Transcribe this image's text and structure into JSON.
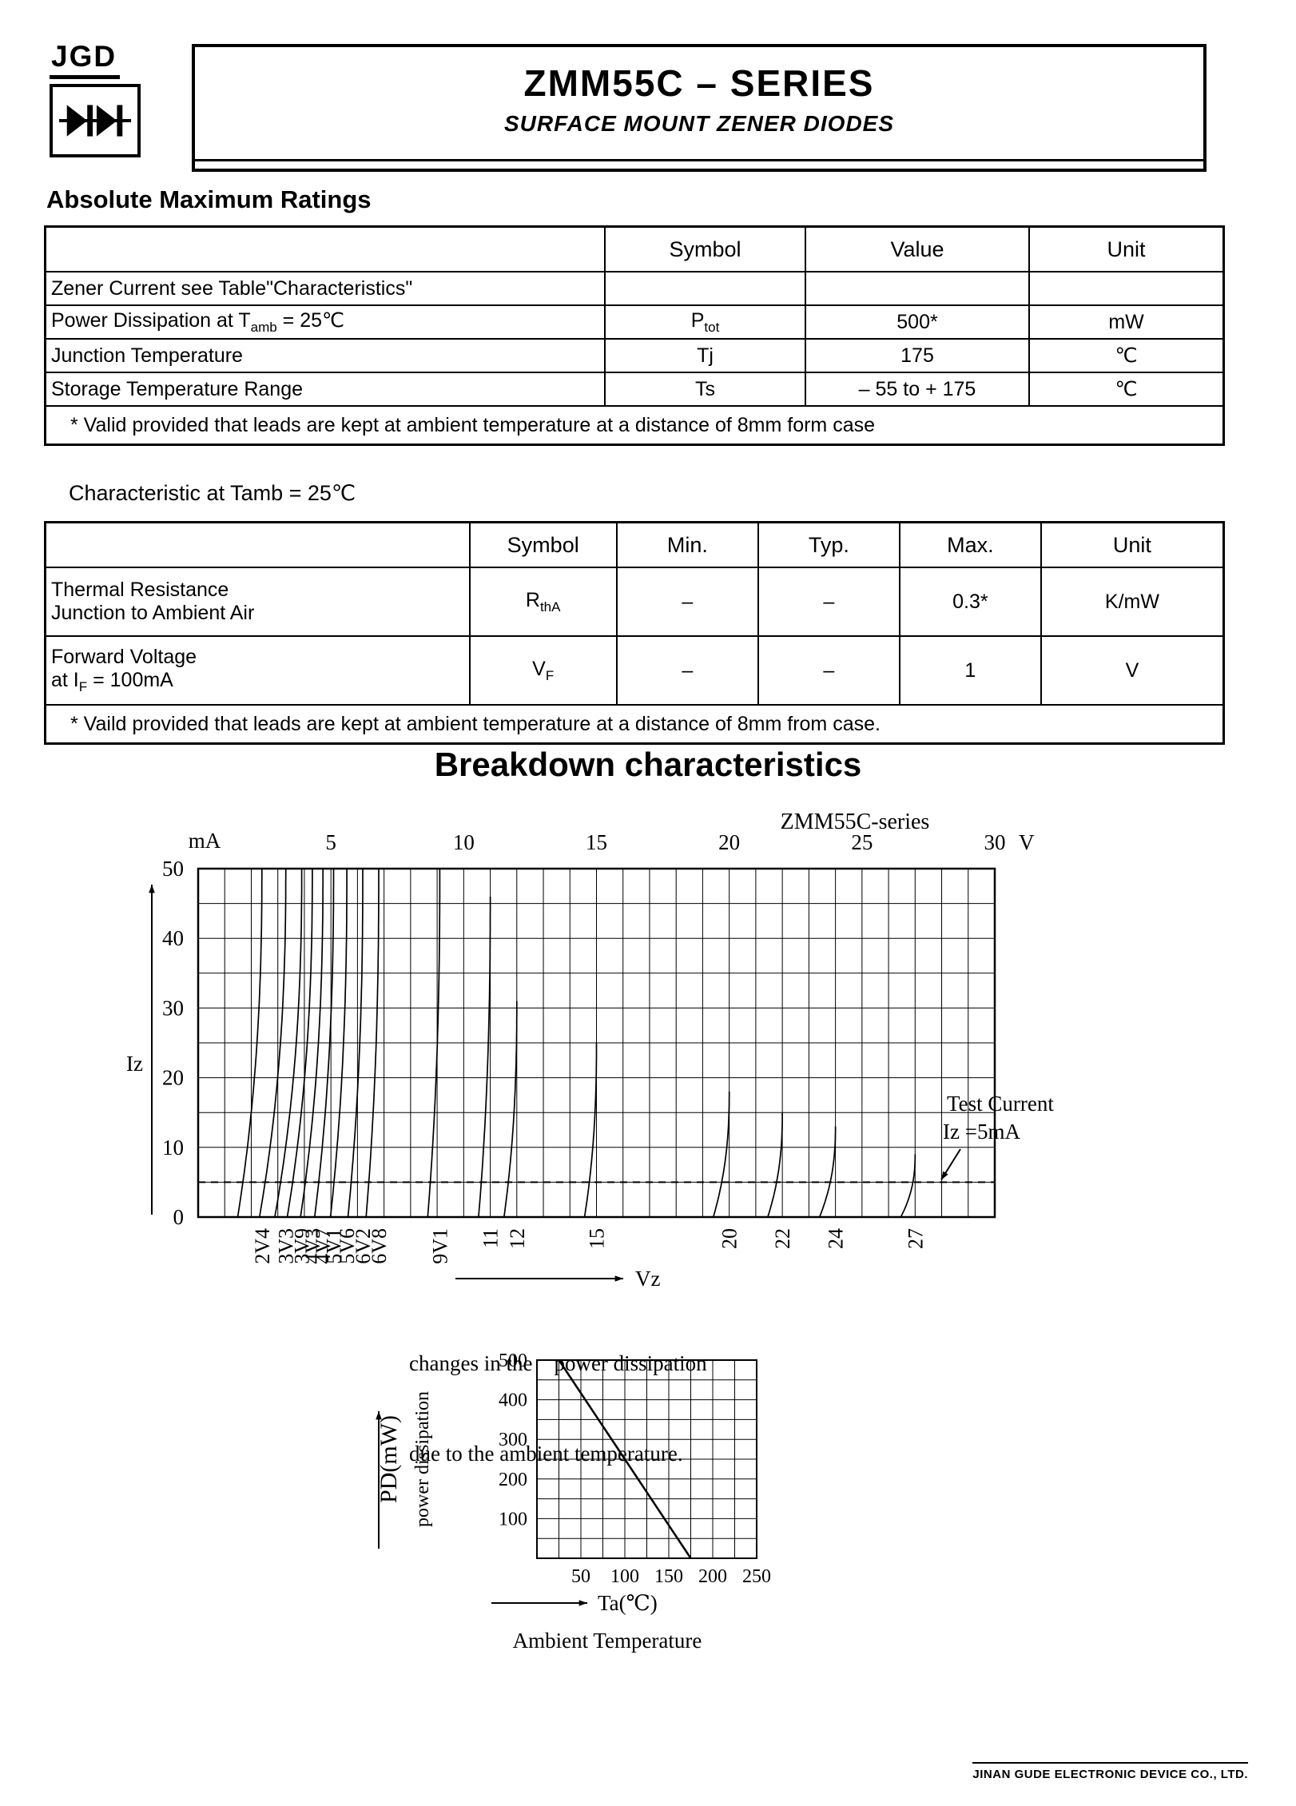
{
  "header": {
    "logo": "JGD",
    "title": "ZMM55C – SERIES",
    "subtitle": "SURFACE MOUNT ZENER DIODES"
  },
  "sections": {
    "abs_max_heading": "Absolute Maximum Ratings",
    "char_heading": "Characteristic at Tamb = 25℃",
    "breakdown_heading": "Breakdown characteristics"
  },
  "abs_max_table": {
    "headers": {
      "symbol": "Symbol",
      "value": "Value",
      "unit": "Unit"
    },
    "rows": [
      {
        "param": "Zener Current see Table\"Characteristics\"",
        "symbol": "",
        "value": "",
        "unit": ""
      },
      {
        "param_a": "Power Dissipation at T",
        "param_sub": "amb",
        "param_b": " = 25℃",
        "sym_base": "P",
        "sym_sub": "tot",
        "value": "500*",
        "unit": "mW"
      },
      {
        "param": "Junction Temperature",
        "symbol": "Tj",
        "value": "175",
        "unit": "℃"
      },
      {
        "param": "Storage Temperature Range",
        "symbol": "Ts",
        "value": "– 55 to + 175",
        "unit": "℃"
      }
    ],
    "footnote": "* Valid provided that leads are kept at ambient temperature at a distance of 8mm form case"
  },
  "char_table": {
    "headers": {
      "symbol": "Symbol",
      "min": "Min.",
      "typ": "Typ.",
      "max": "Max.",
      "unit": "Unit"
    },
    "rows": [
      {
        "param1": "Thermal Resistance",
        "param2": "Junction to Ambient Air",
        "sym_base": "R",
        "sym_sub": "thA",
        "min": "–",
        "typ": "–",
        "max": "0.3*",
        "unit": "K/mW"
      },
      {
        "param1": "Forward Voltage",
        "param2_a": "at I",
        "param2_sub": "F",
        "param2_b": " = 100mA",
        "sym_base": "V",
        "sym_sub": "F",
        "min": "–",
        "typ": "–",
        "max": "1",
        "unit": "V"
      }
    ],
    "footnote": "* Vaild provided that leads are kept at ambient temperature at a distance of 8mm from case."
  },
  "chart_data": [
    {
      "type": "line",
      "title": "ZMM55C-series",
      "xlabel": "Vz",
      "ylabel": "Iz",
      "x_unit": "V",
      "y_unit": "mA",
      "xlim": [
        0,
        30
      ],
      "ylim": [
        0,
        50
      ],
      "x_ticks": [
        5,
        10,
        15,
        20,
        25,
        30
      ],
      "y_ticks": [
        0,
        10,
        20,
        30,
        40,
        50
      ],
      "grid": {
        "x_step": 1,
        "y_step": 5
      },
      "test_current_line": 5,
      "annotation": [
        "Test Current",
        "Iz =5mA"
      ],
      "series": [
        {
          "label": "2V4",
          "vz": 2.4,
          "imax": 50,
          "soft": 0.38
        },
        {
          "label": "3V3",
          "vz": 3.3,
          "imax": 50,
          "soft": 0.3
        },
        {
          "label": "3V9",
          "vz": 3.9,
          "imax": 50,
          "soft": 0.26
        },
        {
          "label": "4V3",
          "vz": 4.3,
          "imax": 50,
          "soft": 0.22
        },
        {
          "label": "4V7",
          "vz": 4.7,
          "imax": 50,
          "soft": 0.18
        },
        {
          "label": "5V1",
          "vz": 5.1,
          "imax": 50,
          "soft": 0.14
        },
        {
          "label": "5V6",
          "vz": 5.6,
          "imax": 50,
          "soft": 0.11
        },
        {
          "label": "6V2",
          "vz": 6.2,
          "imax": 50,
          "soft": 0.09
        },
        {
          "label": "6V8",
          "vz": 6.8,
          "imax": 50,
          "soft": 0.07
        },
        {
          "label": "9V1",
          "vz": 9.1,
          "imax": 50,
          "soft": 0.05
        },
        {
          "label": "11",
          "vz": 11,
          "imax": 46,
          "soft": 0.04
        },
        {
          "label": "12",
          "vz": 12,
          "imax": 31,
          "soft": 0.04
        },
        {
          "label": "15",
          "vz": 15,
          "imax": 25,
          "soft": 0.03
        },
        {
          "label": "20",
          "vz": 20,
          "imax": 18,
          "soft": 0.03
        },
        {
          "label": "22",
          "vz": 22,
          "imax": 15,
          "soft": 0.025
        },
        {
          "label": "24",
          "vz": 24,
          "imax": 13,
          "soft": 0.025
        },
        {
          "label": "27",
          "vz": 27,
          "imax": 9,
          "soft": 0.02
        }
      ]
    },
    {
      "type": "line",
      "caption": [
        "changes in the    power dissipation",
        "due to the ambient temperature."
      ],
      "ylabel": "PD(mW)",
      "ylabel2": "power dissipation",
      "xlabel": "Ta(℃)",
      "xlabel2": "Ambient Temperature",
      "xlim": [
        0,
        250
      ],
      "ylim": [
        0,
        500
      ],
      "x_ticks": [
        50,
        100,
        150,
        200,
        250
      ],
      "y_ticks": [
        100,
        200,
        300,
        400,
        500
      ],
      "grid": {
        "x_step": 25,
        "y_step": 50
      },
      "points": [
        [
          25,
          500
        ],
        [
          175,
          0
        ]
      ]
    }
  ],
  "footer": "JINAN GUDE ELECTRONIC DEVICE CO., LTD."
}
